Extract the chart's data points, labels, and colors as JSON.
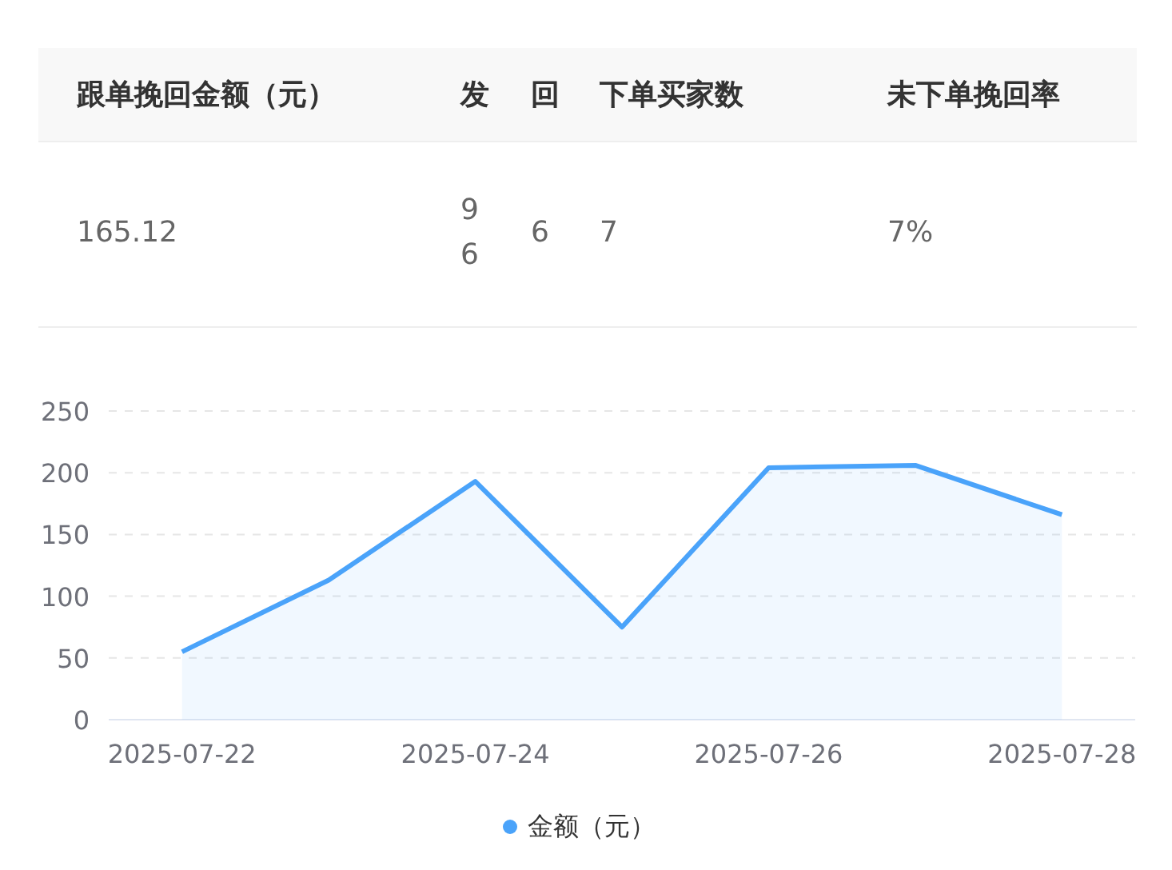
{
  "chart_data": [
    {
      "type": "other",
      "categories": [
        "跟单挽回金额（元）",
        "发",
        "回",
        "下单买家数",
        "未下单挽回率"
      ],
      "value_labels": [
        "165.12",
        "96",
        "6",
        "7",
        "7%"
      ]
    },
    {
      "type": "area",
      "categories": [
        "2025-07-22",
        null,
        "2025-07-24",
        null,
        "2025-07-26",
        null,
        "2025-07-28"
      ],
      "series": [
        {
          "name": "金额（元）",
          "color": "#4aa3fa",
          "values": [
            55,
            113,
            193,
            75,
            204,
            206,
            166
          ]
        }
      ],
      "ylim": [
        0,
        250
      ],
      "yticks": [
        0,
        50,
        100,
        150,
        200,
        250
      ],
      "grid": "y",
      "legend": "bottom",
      "marker": "none",
      "line_style": "solid"
    }
  ]
}
